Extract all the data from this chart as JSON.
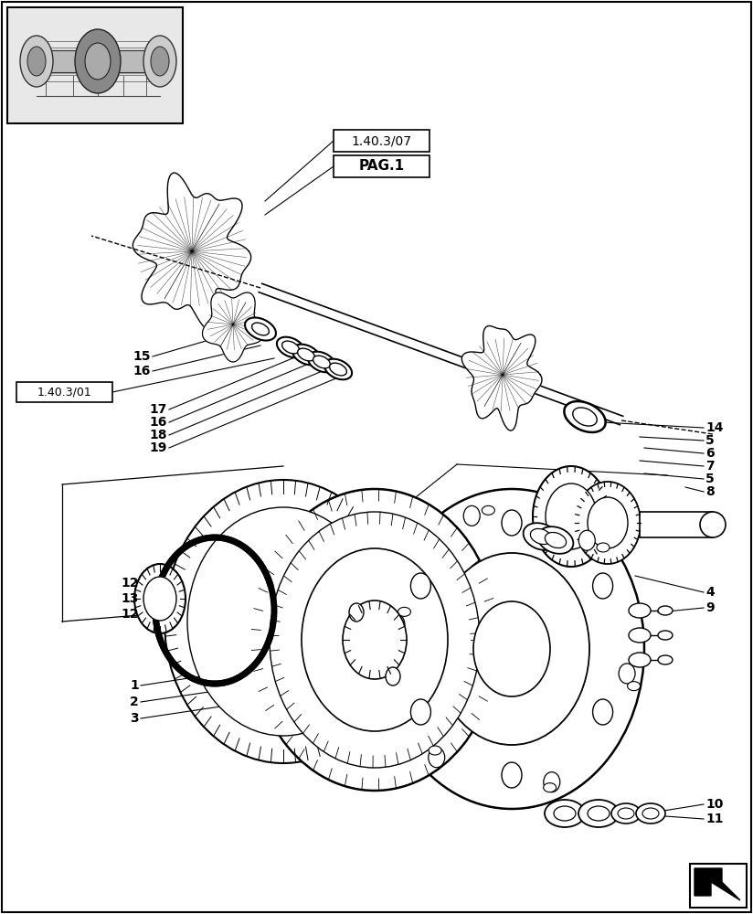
{
  "background_color": "#ffffff",
  "fig_width": 8.24,
  "fig_height": 10.0,
  "dpi": 100,
  "ref_box1_text": "1.40.3/07",
  "ref_box2_text": "PAG.1",
  "ref_box3_text": "1.40.3/01",
  "nav_arrow_color": "#000000",
  "text_color": "#000000",
  "line_color": "#000000"
}
